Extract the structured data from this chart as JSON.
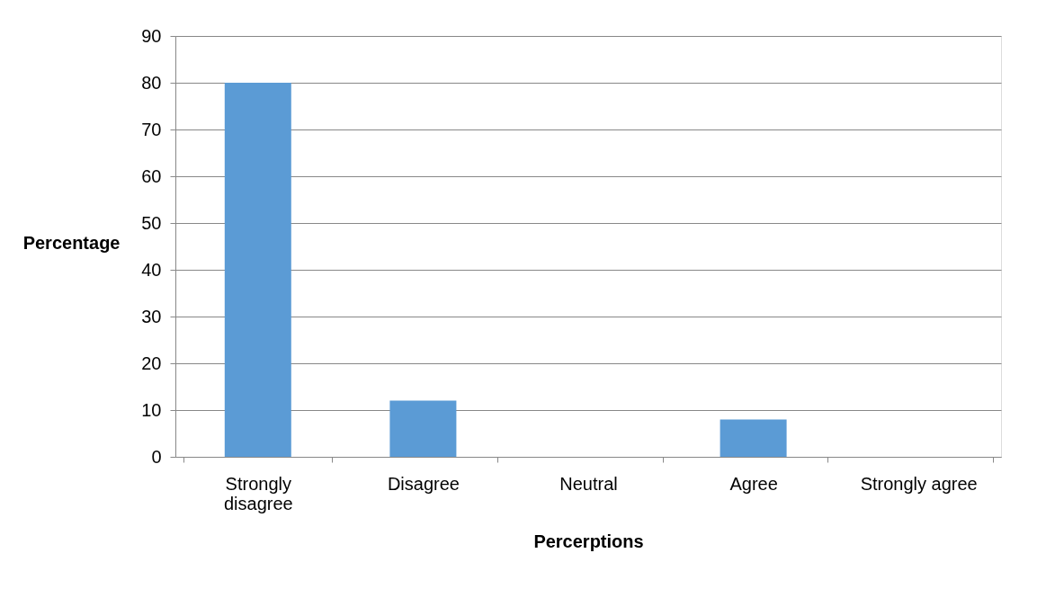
{
  "chart_data": {
    "type": "bar",
    "xlabel": "Percerptions",
    "ylabel": "Percentage",
    "categories": [
      "Strongly disagree",
      "Disagree",
      "Neutral",
      "Agree",
      "Strongly agree"
    ],
    "values": [
      80,
      12,
      0,
      8,
      0
    ],
    "color": "#5b9bd5",
    "ylim": [
      0,
      90
    ],
    "yticks": [
      0,
      10,
      20,
      30,
      40,
      50,
      60,
      70,
      80,
      90
    ],
    "grid": "y",
    "legend": false
  }
}
